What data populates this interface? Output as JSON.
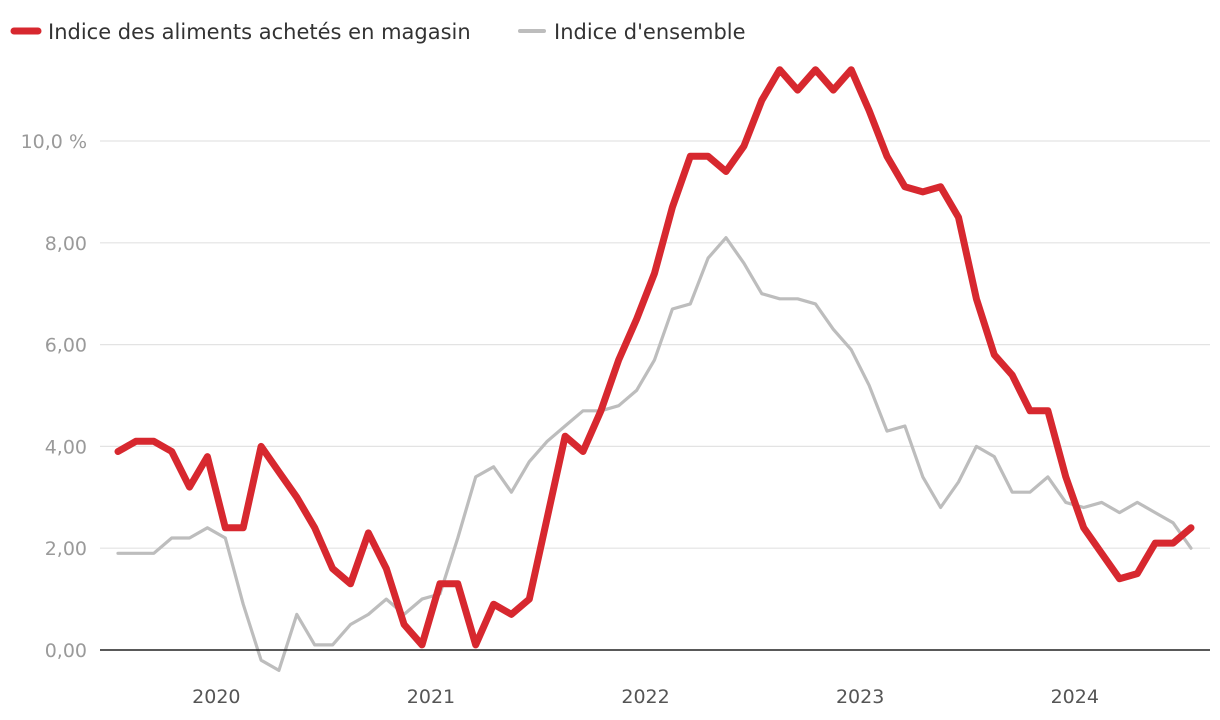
{
  "chart_data": {
    "type": "line",
    "title": "",
    "xlabel": "",
    "ylabel": "",
    "ylim": [
      0,
      11
    ],
    "y_ticks": [
      {
        "value": 0,
        "label": "0,00"
      },
      {
        "value": 2,
        "label": "2,00"
      },
      {
        "value": 4,
        "label": "4,00"
      },
      {
        "value": 6,
        "label": "6,00"
      },
      {
        "value": 8,
        "label": "8,00"
      },
      {
        "value": 10,
        "label": "10,0 %"
      }
    ],
    "x_ticks": [
      {
        "index": 5.5,
        "label": "2020"
      },
      {
        "index": 17.5,
        "label": "2021"
      },
      {
        "index": 29.5,
        "label": "2022"
      },
      {
        "index": 41.5,
        "label": "2023"
      },
      {
        "index": 53.5,
        "label": "2024"
      }
    ],
    "legend_position": "top-left",
    "series": [
      {
        "name": "Indice des aliments achetés en magasin",
        "color": "#d7282f",
        "values": [
          3.9,
          4.1,
          4.1,
          3.9,
          3.2,
          3.8,
          2.4,
          2.4,
          4.0,
          3.5,
          3.0,
          2.4,
          1.6,
          1.3,
          2.3,
          1.6,
          0.5,
          0.1,
          1.3,
          1.3,
          0.1,
          0.9,
          0.7,
          1.0,
          2.6,
          4.2,
          3.9,
          4.7,
          5.7,
          6.5,
          7.4,
          8.7,
          9.7,
          9.7,
          9.4,
          9.9,
          10.8,
          11.4,
          11.0,
          11.4,
          11.0,
          11.4,
          10.6,
          9.7,
          9.1,
          9.0,
          9.1,
          8.5,
          6.9,
          5.8,
          5.4,
          4.7,
          4.7,
          3.4,
          2.4,
          1.9,
          1.4,
          1.5,
          2.1,
          2.1,
          2.4
        ]
      },
      {
        "name": "Indice d'ensemble",
        "color": "#bdbdbd",
        "values": [
          1.9,
          1.9,
          1.9,
          2.2,
          2.2,
          2.4,
          2.2,
          0.9,
          -0.2,
          -0.4,
          0.7,
          0.1,
          0.1,
          0.5,
          0.7,
          1.0,
          0.7,
          1.0,
          1.1,
          2.2,
          3.4,
          3.6,
          3.1,
          3.7,
          4.1,
          4.4,
          4.7,
          4.7,
          4.8,
          5.1,
          5.7,
          6.7,
          6.8,
          7.7,
          8.1,
          7.6,
          7.0,
          6.9,
          6.9,
          6.8,
          6.3,
          5.9,
          5.2,
          4.3,
          4.4,
          3.4,
          2.8,
          3.3,
          4.0,
          3.8,
          3.1,
          3.1,
          3.4,
          2.9,
          2.8,
          2.9,
          2.7,
          2.9,
          2.7,
          2.5,
          2.0
        ]
      }
    ]
  }
}
